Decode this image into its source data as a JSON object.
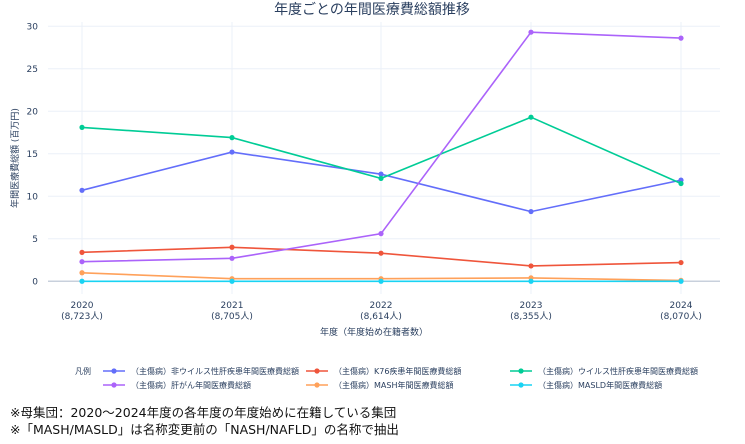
{
  "chart_data": {
    "type": "line",
    "title": "年度ごとの年間医療費総額推移",
    "xlabel": "年度（年度始め在籍者数）",
    "ylabel": "年間医療費総額 (百万円)",
    "ylim": [
      -1.5,
      30.5
    ],
    "yticks": [
      0,
      5,
      10,
      15,
      20,
      25,
      30
    ],
    "grid": true,
    "categories": [
      "2020",
      "2021",
      "2022",
      "2023",
      "2024"
    ],
    "category_sublabels": [
      "(8,723人)",
      "(8,705人)",
      "(8,614人)",
      "(8,355人)",
      "(8,070人)"
    ],
    "legend_title": "凡例",
    "legend_position": "bottom",
    "series": [
      {
        "name": "（主傷病）非ウイルス性肝疾患年間医療費総額",
        "color": "#636efa",
        "values": [
          10.7,
          15.2,
          12.6,
          8.2,
          11.9
        ]
      },
      {
        "name": "（主傷病）K76疾患年間医療費総額",
        "color": "#ef553b",
        "values": [
          3.4,
          4.0,
          3.3,
          1.8,
          2.2
        ]
      },
      {
        "name": "（主傷病）ウイルス性肝疾患年間医療費総額",
        "color": "#00cc96",
        "values": [
          18.1,
          16.9,
          12.1,
          19.3,
          11.5
        ]
      },
      {
        "name": "（主傷病）肝がん年間医療費総額",
        "color": "#ab63fa",
        "values": [
          2.3,
          2.7,
          5.6,
          29.3,
          28.6
        ]
      },
      {
        "name": "（主傷病）MASH年間医療費総額",
        "color": "#ffa15a",
        "values": [
          1.0,
          0.3,
          0.3,
          0.4,
          0.1
        ]
      },
      {
        "name": "（主傷病）MASLD年間医療費総額",
        "color": "#19d3f3",
        "values": [
          0.0,
          0.0,
          0.0,
          0.0,
          0.0
        ]
      }
    ]
  },
  "notes": [
    "※母集団：2020～2024年度の各年度の年度始めに在籍している集団",
    "※「MASH/MASLD」は名称変更前の「NASH/NAFLD」の名称で抽出"
  ]
}
